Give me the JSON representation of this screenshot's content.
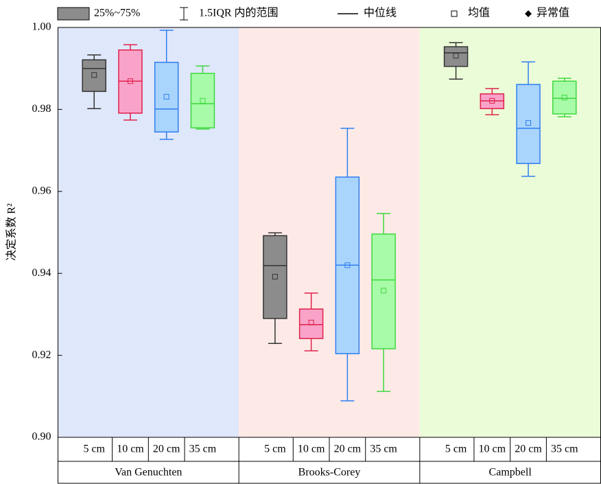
{
  "chart_data": {
    "type": "box",
    "ylabel": "决定系数 R²",
    "ylim": [
      0.9,
      1.0
    ],
    "yticks": [
      {
        "value": 0.9,
        "label": "0.90"
      },
      0.92,
      0.94,
      0.96,
      0.98,
      {
        "value": 1.0,
        "label": "1.00"
      }
    ],
    "legend": {
      "box": "25%~75%",
      "whisker": "1.5IQR 内的范围",
      "median": "中位线",
      "mean": "均值",
      "outlier": "异常值"
    },
    "box_colors": [
      {
        "fill": "#8c8c8c",
        "stroke": "#333333"
      },
      {
        "fill": "#f9a3c9",
        "stroke": "#e0204a"
      },
      {
        "fill": "#a9d4fb",
        "stroke": "#2f7ef0"
      },
      {
        "fill": "#a8fba8",
        "stroke": "#3ed83e"
      }
    ],
    "groups": [
      {
        "name": "Van Genuchten",
        "background": "#dfe7fb",
        "categories": [
          "5 cm",
          "10 cm",
          "20 cm",
          "35 cm"
        ],
        "boxes": [
          {
            "whisker_low": 0.9802,
            "q1": 0.9844,
            "median": 0.99,
            "q3": 0.9921,
            "whisker_high": 0.9933,
            "mean": 0.9884
          },
          {
            "whisker_low": 0.9774,
            "q1": 0.9791,
            "median": 0.9869,
            "q3": 0.9945,
            "whisker_high": 0.9958,
            "mean": 0.9869
          },
          {
            "whisker_low": 0.9727,
            "q1": 0.9745,
            "median": 0.9801,
            "q3": 0.9915,
            "whisker_high": 0.9993,
            "mean": 0.9831
          },
          {
            "whisker_low": 0.9752,
            "q1": 0.9755,
            "median": 0.9814,
            "q3": 0.9888,
            "whisker_high": 0.9906,
            "mean": 0.9821
          }
        ]
      },
      {
        "name": "Brooks-Corey",
        "background": "#fdeae7",
        "categories": [
          "5 cm",
          "10 cm",
          "20 cm",
          "35 cm"
        ],
        "boxes": [
          {
            "whisker_low": 0.9229,
            "q1": 0.929,
            "median": 0.9419,
            "q3": 0.9492,
            "whisker_high": 0.9499,
            "mean": 0.9392
          },
          {
            "whisker_low": 0.9211,
            "q1": 0.9241,
            "median": 0.9275,
            "q3": 0.9313,
            "whisker_high": 0.9352,
            "mean": 0.928
          },
          {
            "whisker_low": 0.9089,
            "q1": 0.9204,
            "median": 0.942,
            "q3": 0.9635,
            "whisker_high": 0.9754,
            "mean": 0.942
          },
          {
            "whisker_low": 0.9112,
            "q1": 0.9216,
            "median": 0.9384,
            "q3": 0.9496,
            "whisker_high": 0.9546,
            "mean": 0.9358
          }
        ]
      },
      {
        "name": "Campbell",
        "background": "#ebfdd8",
        "categories": [
          "5 cm",
          "10 cm",
          "20 cm",
          "35 cm"
        ],
        "boxes": [
          {
            "whisker_low": 0.9874,
            "q1": 0.9905,
            "median": 0.9938,
            "q3": 0.9953,
            "whisker_high": 0.9963,
            "mean": 0.9931
          },
          {
            "whisker_low": 0.9787,
            "q1": 0.9802,
            "median": 0.9821,
            "q3": 0.9838,
            "whisker_high": 0.9851,
            "mean": 0.9821
          },
          {
            "whisker_low": 0.9637,
            "q1": 0.9668,
            "median": 0.9754,
            "q3": 0.9861,
            "whisker_high": 0.9916,
            "mean": 0.9767
          },
          {
            "whisker_low": 0.9782,
            "q1": 0.9789,
            "median": 0.9827,
            "q3": 0.9869,
            "whisker_high": 0.9876,
            "mean": 0.9829
          }
        ]
      }
    ]
  }
}
